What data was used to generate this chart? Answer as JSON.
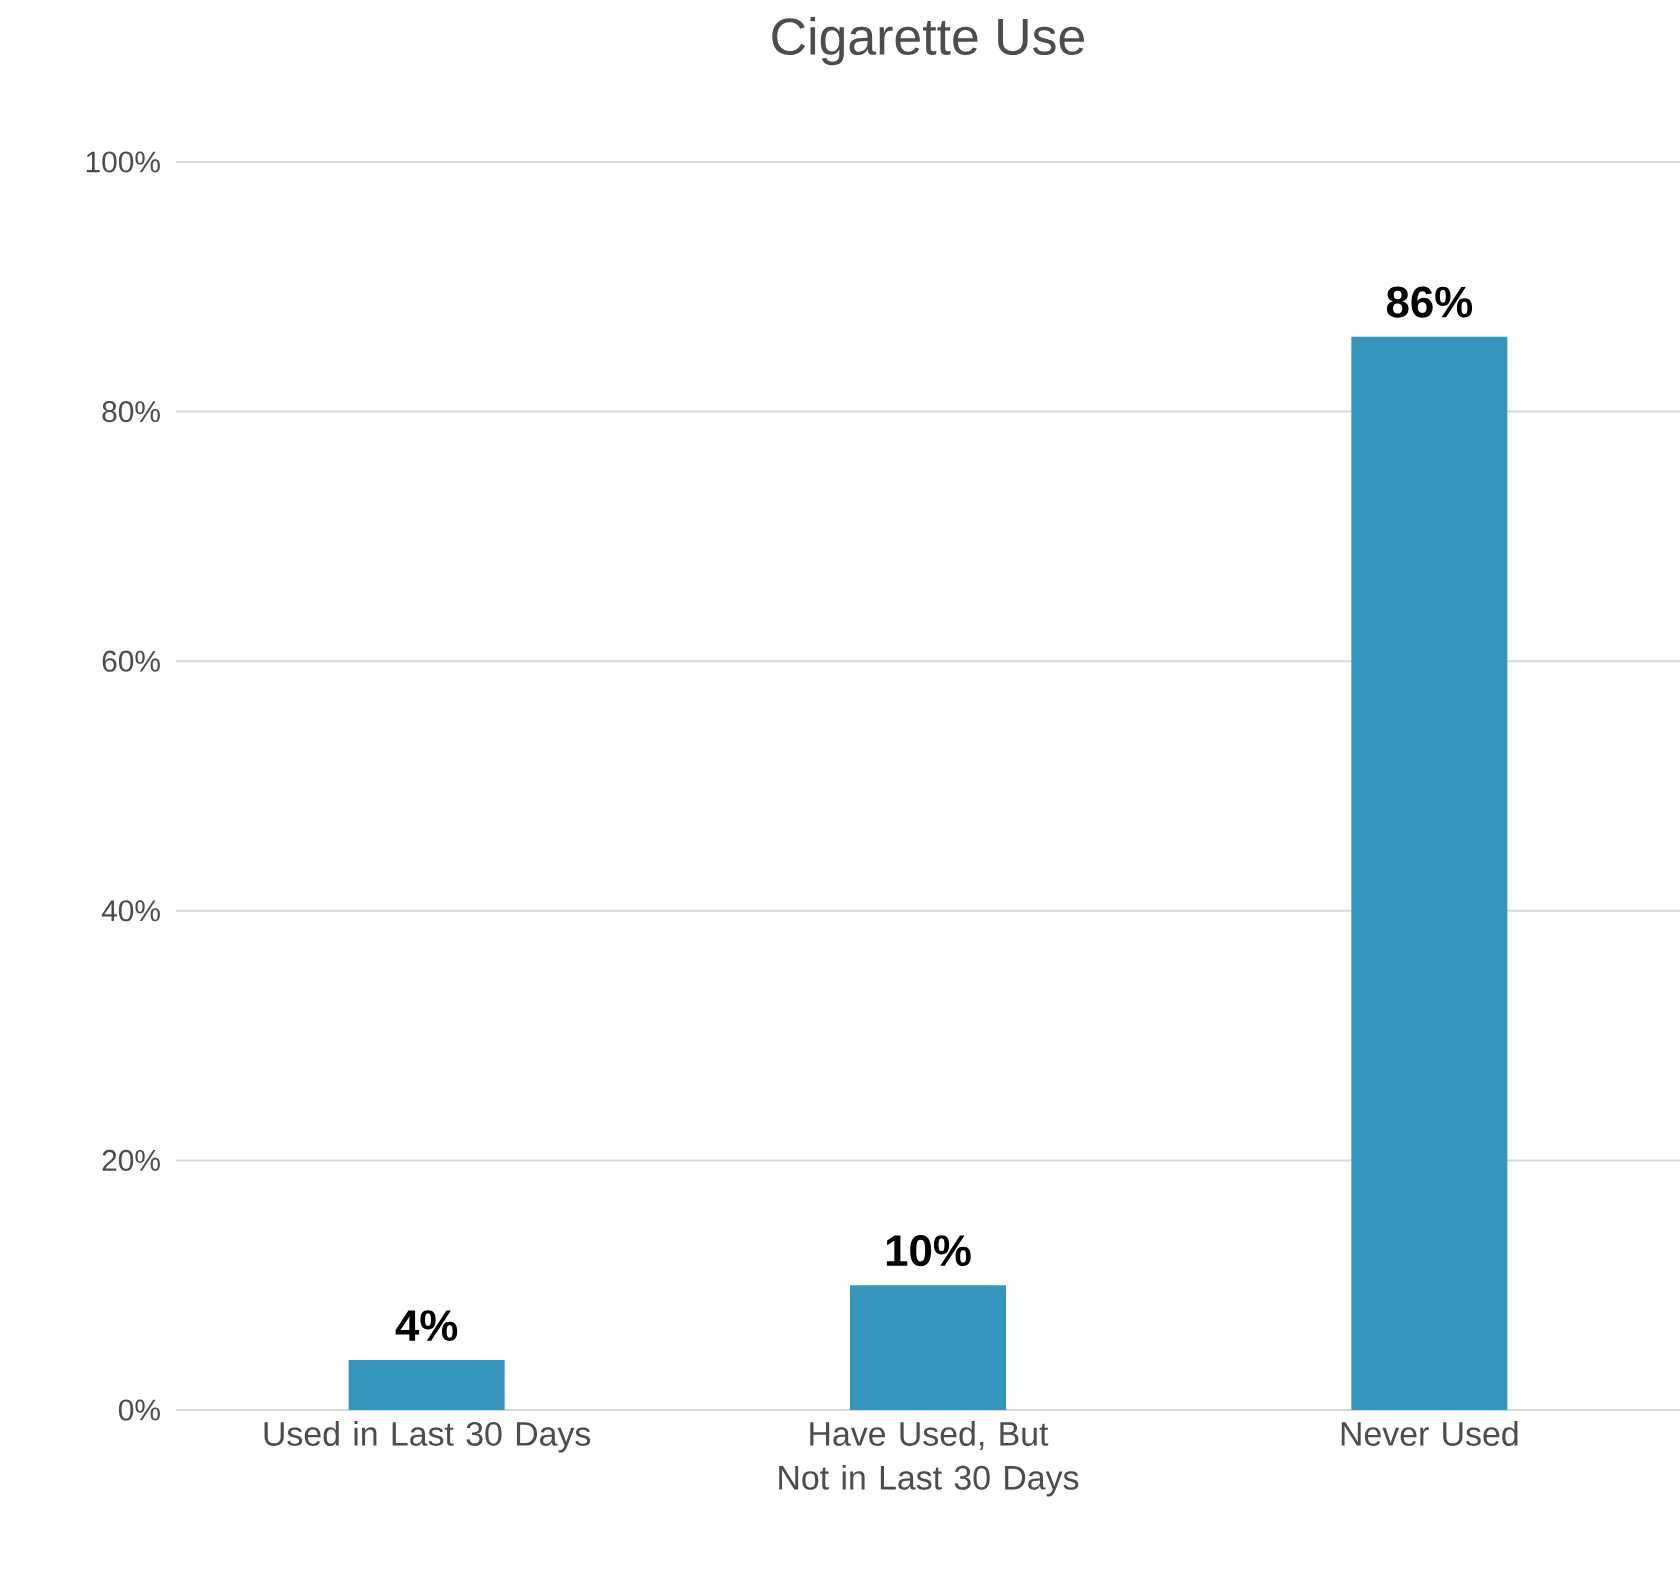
{
  "chart_data": {
    "type": "bar",
    "title": "Cigarette Use",
    "categories": [
      "Used in Last 30 Days",
      "Have Used, But Not in Last 30 Days",
      "Never Used"
    ],
    "values": [
      4,
      10,
      86
    ],
    "value_labels": [
      "4%",
      "10%",
      "86%"
    ],
    "color": "#3595bc",
    "ylim": [
      0,
      100
    ],
    "yticks": [
      {
        "value": 0,
        "label": "0%"
      },
      {
        "value": 20,
        "label": "20%"
      },
      {
        "value": 40,
        "label": "40%"
      },
      {
        "value": 60,
        "label": "60%"
      },
      {
        "value": 80,
        "label": "80%"
      },
      {
        "value": 100,
        "label": "100%"
      }
    ],
    "grid": "y"
  }
}
